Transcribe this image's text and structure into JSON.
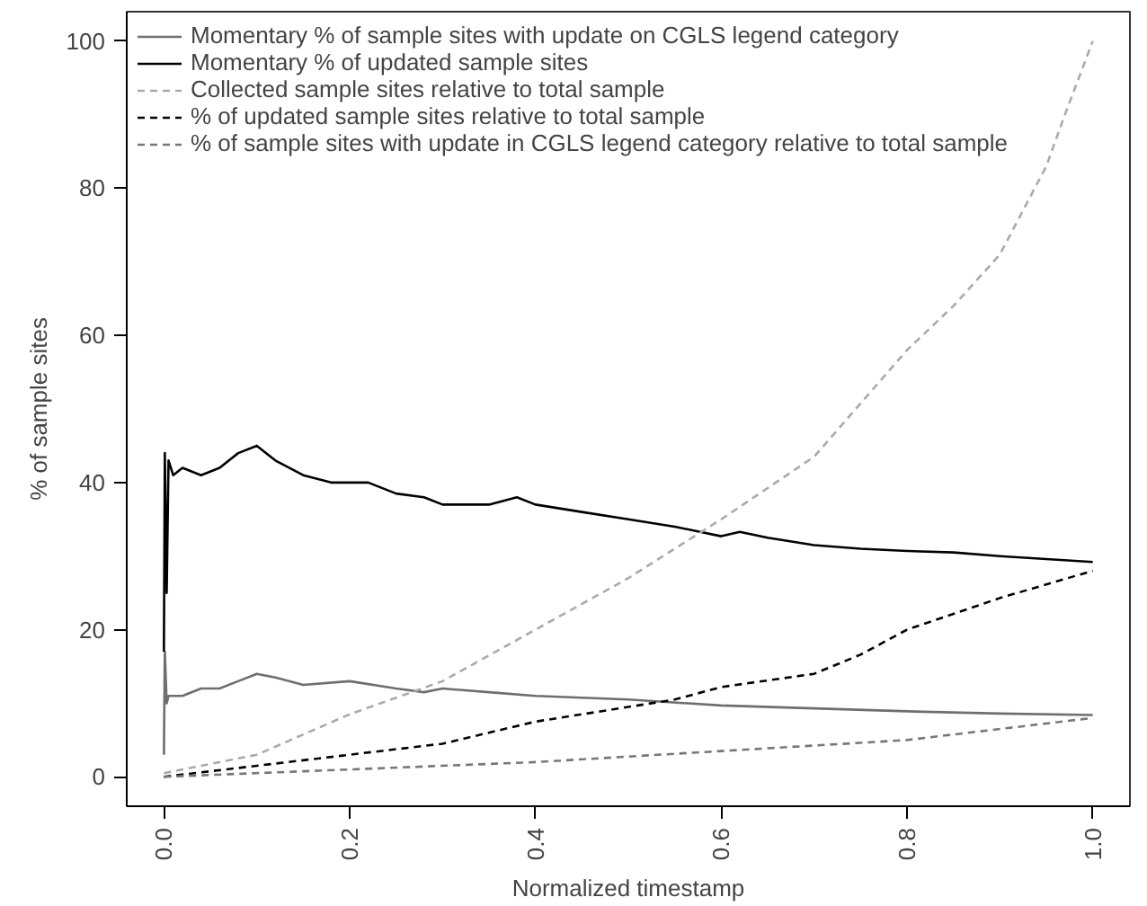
{
  "chart_data": {
    "type": "line",
    "xlabel": "Normalized timestamp",
    "ylabel": "% of sample sites",
    "xlim": [
      -0.04,
      1.04
    ],
    "ylim": [
      -4,
      104
    ],
    "xticks": [
      {
        "value": 0,
        "label": "0.0"
      },
      0.2,
      0.4,
      0.6,
      0.8,
      {
        "value": 1,
        "label": "1.0"
      }
    ],
    "yticks": [
      0,
      20,
      40,
      60,
      80,
      100
    ],
    "grid": false,
    "legend": "top left",
    "marker": "none",
    "series": [
      {
        "name": "Momentary % of sample sites with update on CGLS legend category",
        "color": "#6e6e6e",
        "line_style": "solid",
        "x": [
          0,
          0.001,
          0.003,
          0.005,
          0.02,
          0.04,
          0.06,
          0.08,
          0.1,
          0.12,
          0.15,
          0.2,
          0.25,
          0.28,
          0.3,
          0.35,
          0.4,
          0.5,
          0.6,
          0.7,
          0.8,
          0.9,
          1.0
        ],
        "values": [
          3,
          17,
          10,
          11,
          11,
          12,
          12,
          13,
          14,
          13.5,
          12.5,
          13,
          12,
          11.5,
          12,
          11.5,
          11,
          10.5,
          9.7,
          9.3,
          8.9,
          8.6,
          8.4
        ]
      },
      {
        "name": "Momentary % of updated sample sites",
        "color": "#000000",
        "line_style": "solid",
        "x": [
          0,
          0.001,
          0.003,
          0.005,
          0.01,
          0.02,
          0.04,
          0.06,
          0.08,
          0.1,
          0.12,
          0.15,
          0.18,
          0.2,
          0.22,
          0.25,
          0.28,
          0.3,
          0.35,
          0.38,
          0.4,
          0.45,
          0.5,
          0.55,
          0.6,
          0.62,
          0.65,
          0.7,
          0.75,
          0.8,
          0.85,
          0.9,
          0.95,
          1.0
        ],
        "values": [
          17,
          44,
          25,
          43,
          41,
          42,
          41,
          42,
          44,
          45,
          43,
          41,
          40,
          40,
          40,
          38.5,
          38,
          37,
          37,
          38,
          37,
          36,
          35,
          34,
          32.7,
          33.3,
          32.5,
          31.5,
          31,
          30.7,
          30.5,
          30,
          29.6,
          29.2
        ]
      },
      {
        "name": "Collected sample sites relative to total sample",
        "color": "#aaaaaa",
        "line_style": "dashed",
        "x": [
          0,
          0.1,
          0.2,
          0.3,
          0.4,
          0.5,
          0.6,
          0.7,
          0.8,
          0.85,
          0.9,
          0.95,
          0.97,
          1.0
        ],
        "values": [
          0.5,
          3,
          8.5,
          13,
          20,
          27,
          35,
          43.5,
          58,
          64,
          71,
          83,
          90,
          100
        ]
      },
      {
        "name": "% of updated sample sites relative to total sample",
        "color": "#000000",
        "line_style": "dashed",
        "x": [
          0,
          0.1,
          0.2,
          0.3,
          0.4,
          0.5,
          0.55,
          0.6,
          0.7,
          0.75,
          0.8,
          0.9,
          1.0
        ],
        "values": [
          0,
          1.5,
          3,
          4.5,
          7.5,
          9.5,
          10.5,
          12.2,
          14,
          16.6,
          20,
          24.3,
          28
        ]
      },
      {
        "name": "% of sample sites with update in CGLS legend category relative to total sample",
        "color": "#777777",
        "line_style": "dashed",
        "x": [
          0,
          0.2,
          0.4,
          0.6,
          0.8,
          1.0
        ],
        "values": [
          0,
          1,
          2,
          3.5,
          5,
          8
        ]
      }
    ]
  }
}
